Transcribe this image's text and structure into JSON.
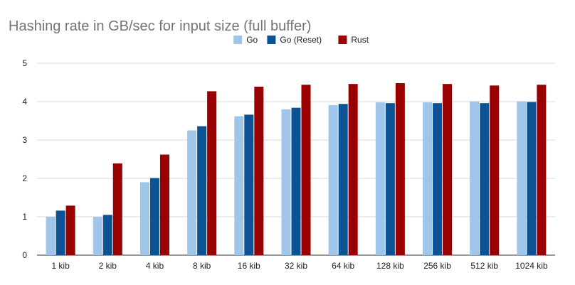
{
  "chart_data": {
    "type": "bar",
    "title": "Hashing rate in GB/sec for input size (full buffer)",
    "xlabel": "",
    "ylabel": "",
    "ylim": [
      0,
      5
    ],
    "yticks": [
      0,
      1,
      2,
      3,
      4,
      5
    ],
    "grid": true,
    "legend_position": "top",
    "categories": [
      "1 kib",
      "2 kib",
      "4 kib",
      "8 kib",
      "16 kib",
      "32 kib",
      "64 kib",
      "128 kib",
      "256 kib",
      "512 kib",
      "1024 kib"
    ],
    "series": [
      {
        "name": "Go",
        "color": "#9fc5e8",
        "values": [
          1.0,
          1.0,
          1.9,
          3.25,
          3.62,
          3.8,
          3.91,
          3.98,
          3.98,
          4.01,
          4.01
        ]
      },
      {
        "name": "Go (Reset)",
        "color": "#0b5394",
        "values": [
          1.16,
          1.05,
          2.01,
          3.36,
          3.66,
          3.84,
          3.94,
          3.96,
          3.96,
          3.96,
          3.99
        ]
      },
      {
        "name": "Rust",
        "color": "#990000",
        "values": [
          1.29,
          2.39,
          2.62,
          4.27,
          4.39,
          4.44,
          4.46,
          4.48,
          4.46,
          4.42,
          4.44
        ]
      }
    ]
  }
}
